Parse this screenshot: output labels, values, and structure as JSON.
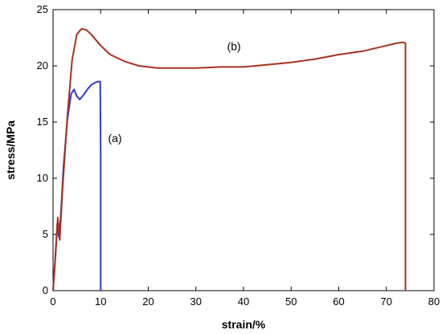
{
  "chart_data": {
    "type": "line",
    "title": "",
    "xlabel": "strain/%",
    "ylabel": "stress/MPa",
    "xlim": [
      0,
      80
    ],
    "ylim": [
      0,
      25
    ],
    "x_ticks": [
      0,
      10,
      20,
      30,
      40,
      50,
      60,
      70,
      80
    ],
    "y_ticks": [
      0,
      5,
      10,
      15,
      20,
      25
    ],
    "grid": false,
    "legend": "none",
    "series": [
      {
        "name": "(a)",
        "color": "#2e3bd1",
        "x": [
          0,
          0.4,
          0.9,
          1.2,
          1.6,
          2.2,
          3.0,
          3.8,
          4.4,
          5.0,
          5.6,
          6.4,
          7.2,
          8.0,
          8.8,
          9.4,
          9.9,
          10.0,
          10.0
        ],
        "y": [
          0,
          2.5,
          6.0,
          4.8,
          6.5,
          11.0,
          15.2,
          17.5,
          17.9,
          17.3,
          17.0,
          17.4,
          17.9,
          18.3,
          18.5,
          18.6,
          18.6,
          12.0,
          0
        ]
      },
      {
        "name": "(b)",
        "color": "#a9321c",
        "x": [
          0,
          0.5,
          1.0,
          1.4,
          2.0,
          3.0,
          4.0,
          5.0,
          6.0,
          7.0,
          8.0,
          10,
          12,
          15,
          18,
          22,
          26,
          30,
          35,
          40,
          45,
          50,
          55,
          60,
          65,
          70,
          72,
          73.5,
          74.0,
          74.0
        ],
        "y": [
          0,
          3.0,
          6.5,
          4.5,
          9.0,
          15.5,
          20.5,
          22.8,
          23.3,
          23.2,
          22.8,
          21.8,
          21.0,
          20.4,
          20.0,
          19.8,
          19.8,
          19.8,
          19.9,
          19.9,
          20.1,
          20.3,
          20.6,
          21.0,
          21.3,
          21.8,
          22.0,
          22.1,
          22.0,
          0
        ]
      }
    ],
    "annotations": [
      {
        "text": "(a)",
        "x": 13,
        "y": 13.2
      },
      {
        "text": "(b)",
        "x": 38,
        "y": 21.4
      }
    ]
  }
}
